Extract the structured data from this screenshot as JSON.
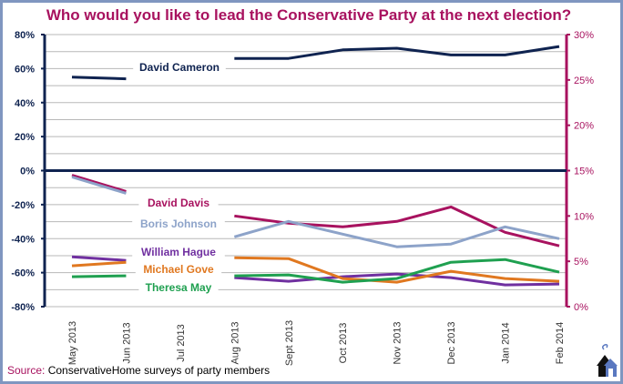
{
  "chart_data": {
    "type": "line",
    "title": "Who would you like to lead the Conservative Party at the next election?",
    "xlabel": "",
    "ylabel_left": "",
    "ylabel_right": "",
    "categories": [
      "May 2013",
      "Jun 2013",
      "Jul 2013",
      "Aug 2013",
      "Sept 2013",
      "Oct 2013",
      "Nov 2013",
      "Dec 2013",
      "Jan 2014",
      "Feb 2014"
    ],
    "left_axis": {
      "ylim": [
        -80,
        80
      ],
      "ticks": [
        "80%",
        "60%",
        "40%",
        "20%",
        "0%",
        "-20%",
        "-40%",
        "-60%",
        "-80%"
      ]
    },
    "right_axis": {
      "ylim": [
        0,
        30
      ],
      "ticks": [
        "30%",
        "25%",
        "20%",
        "15%",
        "10%",
        "5%",
        "0%"
      ]
    },
    "grid": true,
    "legend_position": "inline labels",
    "series": [
      {
        "name": "David Cameron",
        "axis": "left",
        "color": "#0f2350",
        "values": [
          55,
          54,
          null,
          66,
          66,
          71,
          72,
          68,
          68,
          73
        ]
      },
      {
        "name": "David Davis",
        "axis": "right",
        "color": "#a8125f",
        "values": [
          14.5,
          12.7,
          null,
          10.0,
          9.2,
          8.8,
          9.4,
          11.0,
          8.2,
          6.7
        ]
      },
      {
        "name": "Boris Johnson",
        "axis": "right",
        "color": "#8da3c9",
        "values": [
          14.3,
          12.5,
          null,
          7.7,
          9.4,
          8.0,
          6.6,
          6.9,
          8.8,
          7.5
        ]
      },
      {
        "name": "William Hague",
        "axis": "right",
        "color": "#7030a0",
        "values": [
          5.5,
          5.1,
          null,
          3.2,
          2.8,
          3.3,
          3.6,
          3.2,
          2.4,
          2.5
        ]
      },
      {
        "name": "Michael Gove",
        "axis": "right",
        "color": "#e07820",
        "values": [
          4.5,
          4.9,
          null,
          5.4,
          5.3,
          3.1,
          2.7,
          3.9,
          3.1,
          2.8
        ]
      },
      {
        "name": "Theresa May",
        "axis": "right",
        "color": "#1fa050",
        "values": [
          3.3,
          3.4,
          null,
          3.4,
          3.5,
          2.7,
          3.1,
          4.9,
          5.2,
          3.8
        ]
      }
    ],
    "annotations": [
      "Zero line at 0% (left) / 15% (right)"
    ]
  },
  "header": {
    "title": "Who would you like to lead the Conservative Party at the next election?"
  },
  "footer": {
    "source_label": "Source:",
    "source_text": " ConservativeHome surveys of party members"
  },
  "labels": {
    "cameron": "David Cameron",
    "davis": "David Davis",
    "johnson": "Boris Johnson",
    "hague": "William Hague",
    "gove": "Michael Gove",
    "may": "Theresa May"
  },
  "colors": {
    "title": "#a8125f",
    "left_axis": "#0f2350",
    "right_axis": "#a8125f",
    "frame": "#8096c0"
  }
}
